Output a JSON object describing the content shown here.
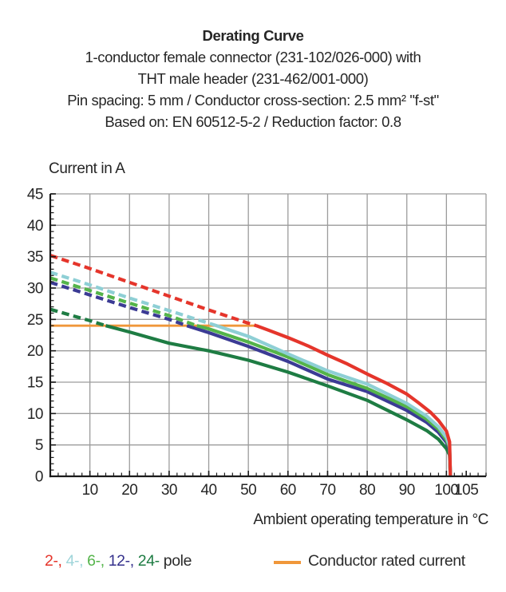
{
  "header": {
    "title": "Derating Curve",
    "subtitle_lines": [
      "1-conductor female connector (231-102/026-000) with",
      "THT male header (231-462/001-000)",
      "Pin spacing: 5 mm / Conductor cross-section: 2.5 mm² \"f-st\"",
      "Based on: EN 60512-5-2 / Reduction factor: 0.8"
    ]
  },
  "chart_data": {
    "type": "line",
    "title": "Derating Curve",
    "ylabel": "Current in A",
    "xlabel": "Ambient operating temperature in °C",
    "xlim": [
      0,
      110
    ],
    "ylim": [
      0,
      45
    ],
    "x_ticks": [
      10,
      20,
      30,
      40,
      50,
      60,
      70,
      80,
      90,
      100,
      105
    ],
    "y_ticks": [
      0,
      5,
      10,
      15,
      20,
      25,
      30,
      35,
      40,
      45
    ],
    "x_minor_step": 2,
    "y_minor_step": 1,
    "grid": true,
    "grid_color": "#9c9c9c",
    "axis_color": "#1a1a1a",
    "rated_current": {
      "label": "Conductor rated current",
      "value": 24,
      "x_start": 0,
      "x_end": 52.5,
      "color": "#f0973a"
    },
    "series": [
      {
        "name": "2-pole",
        "color": "#e5352b",
        "dash_until_x": 52,
        "points": [
          [
            0,
            35.2
          ],
          [
            10,
            33.1
          ],
          [
            20,
            30.9
          ],
          [
            30,
            28.7
          ],
          [
            40,
            26.5
          ],
          [
            50,
            24.4
          ],
          [
            52,
            24
          ],
          [
            55,
            23.3
          ],
          [
            60,
            22.1
          ],
          [
            65,
            20.8
          ],
          [
            70,
            19.3
          ],
          [
            75,
            17.9
          ],
          [
            80,
            16.3
          ],
          [
            85,
            14.8
          ],
          [
            90,
            13.1
          ],
          [
            93,
            11.7
          ],
          [
            96,
            10.2
          ],
          [
            98,
            8.9
          ],
          [
            100,
            7.2
          ],
          [
            100.8,
            5.5
          ],
          [
            101,
            0
          ]
        ]
      },
      {
        "name": "4-pole",
        "color": "#8ecfd5",
        "dash_until_x": 42,
        "points": [
          [
            0,
            32.5
          ],
          [
            10,
            30.5
          ],
          [
            20,
            28.4
          ],
          [
            30,
            26.4
          ],
          [
            40,
            24.4
          ],
          [
            42,
            24
          ],
          [
            50,
            22.3
          ],
          [
            60,
            19.5
          ],
          [
            70,
            16.8
          ],
          [
            80,
            14.7
          ],
          [
            90,
            11.6
          ],
          [
            95,
            9.6
          ],
          [
            98,
            7.9
          ],
          [
            100,
            6.2
          ],
          [
            100.8,
            4.8
          ],
          [
            101,
            0
          ]
        ]
      },
      {
        "name": "6-pole",
        "color": "#54b44a",
        "dash_until_x": 37,
        "points": [
          [
            0,
            31.6
          ],
          [
            10,
            29.6
          ],
          [
            20,
            27.6
          ],
          [
            30,
            25.6
          ],
          [
            37,
            24
          ],
          [
            40,
            23.5
          ],
          [
            50,
            21.4
          ],
          [
            60,
            19.0
          ],
          [
            70,
            16.2
          ],
          [
            80,
            14.0
          ],
          [
            90,
            11.1
          ],
          [
            95,
            9.1
          ],
          [
            98,
            7.5
          ],
          [
            100,
            5.8
          ],
          [
            100.8,
            4.5
          ],
          [
            101,
            0
          ]
        ]
      },
      {
        "name": "12-pole",
        "color": "#3b3b94",
        "dash_until_x": 34.5,
        "points": [
          [
            0,
            30.9
          ],
          [
            10,
            28.9
          ],
          [
            20,
            26.9
          ],
          [
            30,
            25.0
          ],
          [
            34.5,
            24
          ],
          [
            40,
            22.9
          ],
          [
            50,
            20.7
          ],
          [
            60,
            18.3
          ],
          [
            70,
            15.5
          ],
          [
            80,
            13.5
          ],
          [
            90,
            10.5
          ],
          [
            95,
            8.6
          ],
          [
            98,
            7.0
          ],
          [
            100,
            5.4
          ],
          [
            100.8,
            4.2
          ],
          [
            101,
            0
          ]
        ]
      },
      {
        "name": "24-pole",
        "color": "#1e7c43",
        "dash_until_x": 14,
        "points": [
          [
            0,
            26.6
          ],
          [
            10,
            24.8
          ],
          [
            14,
            24
          ],
          [
            20,
            23.0
          ],
          [
            30,
            21.2
          ],
          [
            40,
            20.0
          ],
          [
            50,
            18.5
          ],
          [
            60,
            16.6
          ],
          [
            70,
            14.4
          ],
          [
            80,
            12.1
          ],
          [
            90,
            9.0
          ],
          [
            95,
            7.3
          ],
          [
            98,
            5.9
          ],
          [
            100,
            4.4
          ],
          [
            100.8,
            3.4
          ],
          [
            101,
            0
          ]
        ]
      }
    ]
  },
  "legend": {
    "pole_items": [
      {
        "label": "2-,",
        "color": "#e5352b"
      },
      {
        "label": "4-,",
        "color": "#9fd5da"
      },
      {
        "label": "6-,",
        "color": "#54b44a"
      },
      {
        "label": "12-,",
        "color": "#35318c"
      },
      {
        "label": "24-",
        "color": "#1e7c43"
      }
    ],
    "pole_suffix": "pole",
    "rated_label": "Conductor rated current"
  }
}
